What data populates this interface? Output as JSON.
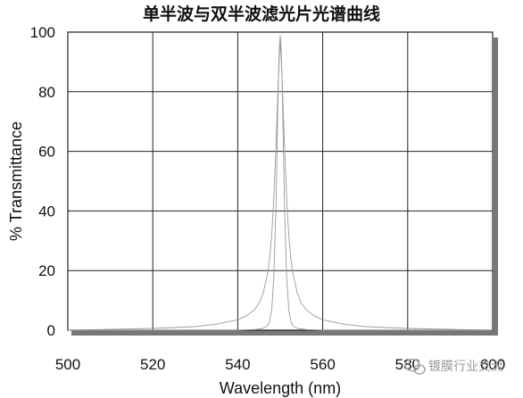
{
  "chart_data": {
    "type": "line",
    "title": "单半波与双半波滤光片光谱曲线",
    "xlabel": "Wavelength (nm)",
    "ylabel": "% Transmittance",
    "xlim": [
      500,
      600
    ],
    "ylim": [
      0,
      100
    ],
    "xticks": [
      "500",
      "520",
      "540",
      "560",
      "580",
      "600"
    ],
    "yticks": [
      "0",
      "20",
      "40",
      "60",
      "80",
      "100"
    ],
    "grid": true,
    "series": [
      {
        "x": [
          500,
          520,
          530,
          535,
          540,
          542,
          544,
          545,
          546,
          547,
          547.5,
          548,
          548.5,
          549,
          549.5,
          549.8,
          550,
          550.2,
          550.5,
          551,
          551.5,
          552,
          552.5,
          553,
          554,
          555,
          556,
          558,
          560,
          565,
          570,
          580,
          590,
          600
        ],
        "y": [
          0,
          0.6,
          1.2,
          2,
          3.5,
          4.8,
          7,
          9,
          12.5,
          19,
          24,
          32,
          45,
          62,
          82,
          92,
          97,
          92,
          82,
          62,
          45,
          32,
          24,
          19,
          12.5,
          9,
          7,
          4.8,
          3.5,
          2,
          1.2,
          0.6,
          0.3,
          0
        ]
      },
      {
        "x": [
          500,
          540,
          544,
          546,
          547,
          547.5,
          548,
          548.5,
          549,
          549.3,
          549.6,
          549.8,
          550,
          550.2,
          550.4,
          550.7,
          551,
          551.5,
          552,
          552.5,
          553,
          554,
          556,
          560,
          600
        ],
        "y": [
          0,
          0,
          0.2,
          0.6,
          1.5,
          3,
          7,
          18,
          42,
          65,
          86,
          95,
          99,
          95,
          86,
          65,
          42,
          18,
          7,
          3,
          1.5,
          0.6,
          0.2,
          0,
          0
        ]
      }
    ]
  },
  "watermark": {
    "icon": "wechat-icon",
    "text": "镀膜行业交流"
  }
}
